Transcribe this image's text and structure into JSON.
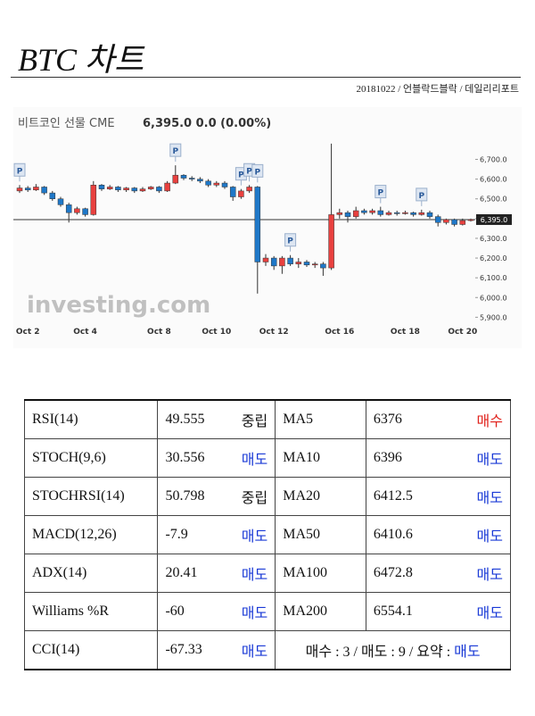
{
  "header": {
    "title": "BTC 차트",
    "byline": "20181022 / 언블락드블락 / 데일리리포트"
  },
  "chart_data": {
    "type": "candlestick",
    "title": "비트코인 선물 CME",
    "price_text": "6,395.0 0.0 (0.00%)",
    "watermark": "investing.com",
    "categories": [
      null,
      "Oct 2",
      null,
      null,
      null,
      null,
      null,
      null,
      "Oct 4",
      null,
      null,
      null,
      null,
      null,
      null,
      null,
      null,
      "Oct 8",
      null,
      null,
      null,
      null,
      null,
      null,
      "Oct 10",
      null,
      null,
      null,
      null,
      null,
      null,
      "Oct 12",
      null,
      null,
      null,
      null,
      null,
      null,
      null,
      "Oct 16",
      null,
      null,
      null,
      null,
      null,
      null,
      null,
      "Oct 18",
      null,
      null,
      null,
      null,
      null,
      null,
      "Oct 20",
      null
    ],
    "open": [
      6540,
      6555,
      6545,
      6560,
      6530,
      6500,
      6470,
      6430,
      6450,
      6420,
      6570,
      6550,
      6560,
      6545,
      6555,
      6540,
      6550,
      6560,
      6540,
      6580,
      6620,
      6605,
      6600,
      6590,
      6570,
      6580,
      6560,
      6510,
      6540,
      6560,
      6180,
      6200,
      6160,
      6200,
      6170,
      6180,
      6165,
      6170,
      6150,
      6420,
      6430,
      6410,
      6440,
      6430,
      6440,
      6420,
      6430,
      6425,
      6430,
      6420,
      6430,
      6410,
      6380,
      6395,
      6370,
      6390
    ],
    "high": [
      6570,
      6565,
      6575,
      6565,
      6540,
      6510,
      6480,
      6460,
      6455,
      6590,
      6575,
      6570,
      6565,
      6560,
      6560,
      6560,
      6565,
      6565,
      6590,
      6670,
      6625,
      6615,
      6610,
      6600,
      6590,
      6590,
      6565,
      6550,
      6570,
      6565,
      6220,
      6210,
      6210,
      6215,
      6200,
      6190,
      6180,
      6180,
      6780,
      6450,
      6440,
      6460,
      6450,
      6450,
      6460,
      6440,
      6440,
      6440,
      6435,
      6445,
      6440,
      6420,
      6400,
      6400,
      6400,
      6400
    ],
    "low": [
      6530,
      6535,
      6540,
      6520,
      6490,
      6460,
      6380,
      6420,
      6410,
      6415,
      6540,
      6545,
      6535,
      6535,
      6530,
      6535,
      6545,
      6530,
      6535,
      6575,
      6595,
      6590,
      6580,
      6560,
      6560,
      6550,
      6490,
      6500,
      6530,
      6020,
      6160,
      6140,
      6120,
      6160,
      6150,
      6155,
      6150,
      6110,
      6140,
      6400,
      6380,
      6400,
      6420,
      6420,
      6410,
      6415,
      6415,
      6420,
      6410,
      6415,
      6400,
      6360,
      6370,
      6360,
      6365,
      6385
    ],
    "close": [
      6555,
      6545,
      6560,
      6530,
      6500,
      6470,
      6430,
      6450,
      6420,
      6570,
      6550,
      6560,
      6545,
      6555,
      6540,
      6550,
      6560,
      6540,
      6580,
      6620,
      6605,
      6600,
      6590,
      6570,
      6580,
      6560,
      6510,
      6540,
      6560,
      6180,
      6200,
      6160,
      6200,
      6170,
      6180,
      6165,
      6170,
      6150,
      6420,
      6430,
      6410,
      6440,
      6430,
      6440,
      6420,
      6430,
      6425,
      6430,
      6420,
      6430,
      6410,
      6380,
      6395,
      6370,
      6390,
      6395
    ],
    "up_color": "#e8413f",
    "down_color": "#1f78c8",
    "ylim": [
      5870,
      6820
    ],
    "yticks": [
      {
        "value": 6700,
        "label": "6,700.0"
      },
      {
        "value": 6600,
        "label": "6,600.0"
      },
      {
        "value": 6500,
        "label": "6,500.0"
      },
      {
        "value": 6400,
        "label": "6,400.0"
      },
      {
        "value": 6300,
        "label": "6,300.0"
      },
      {
        "value": 6200,
        "label": "6,200.0"
      },
      {
        "value": 6100,
        "label": "6,100.0"
      },
      {
        "value": 6000,
        "label": "6,000.0"
      },
      {
        "value": 5900,
        "label": "5,900.0"
      }
    ],
    "last_price": 6395,
    "last_price_label": "6,395.0",
    "annotations": [
      {
        "label": "P",
        "at": 0
      },
      {
        "label": "P",
        "at": 19
      },
      {
        "label": "P",
        "at": 27
      },
      {
        "label": "P",
        "at": 28
      },
      {
        "label": "P",
        "at": 29
      },
      {
        "label": "P",
        "at": 33
      },
      {
        "label": "P",
        "at": 44
      },
      {
        "label": "P",
        "at": 49
      }
    ]
  },
  "signal_colors": {
    "매수": "#e0201a",
    "매도": "#1a3ad6",
    "중립": "#111111"
  },
  "table": {
    "rows": [
      [
        "RSI(14)",
        "49.555",
        "중립",
        "MA5",
        "6376",
        "매수"
      ],
      [
        "STOCH(9,6)",
        "30.556",
        "매도",
        "MA10",
        "6396",
        "매도"
      ],
      [
        "STOCHRSI(14)",
        "50.798",
        "중립",
        "MA20",
        "6412.5",
        "매도"
      ],
      [
        "MACD(12,26)",
        "-7.9",
        "매도",
        "MA50",
        "6410.6",
        "매도"
      ],
      [
        "ADX(14)",
        "20.41",
        "매도",
        "MA100",
        "6472.8",
        "매도"
      ],
      [
        "Williams %R",
        "-60",
        "매도",
        "MA200",
        "6554.1",
        "매도"
      ],
      [
        "CCI(14)",
        "-67.33",
        "매도"
      ]
    ],
    "summary": {
      "text": "매수 : 3 / 매도 : 9 / 요약 : ",
      "verdict": "매도"
    }
  }
}
